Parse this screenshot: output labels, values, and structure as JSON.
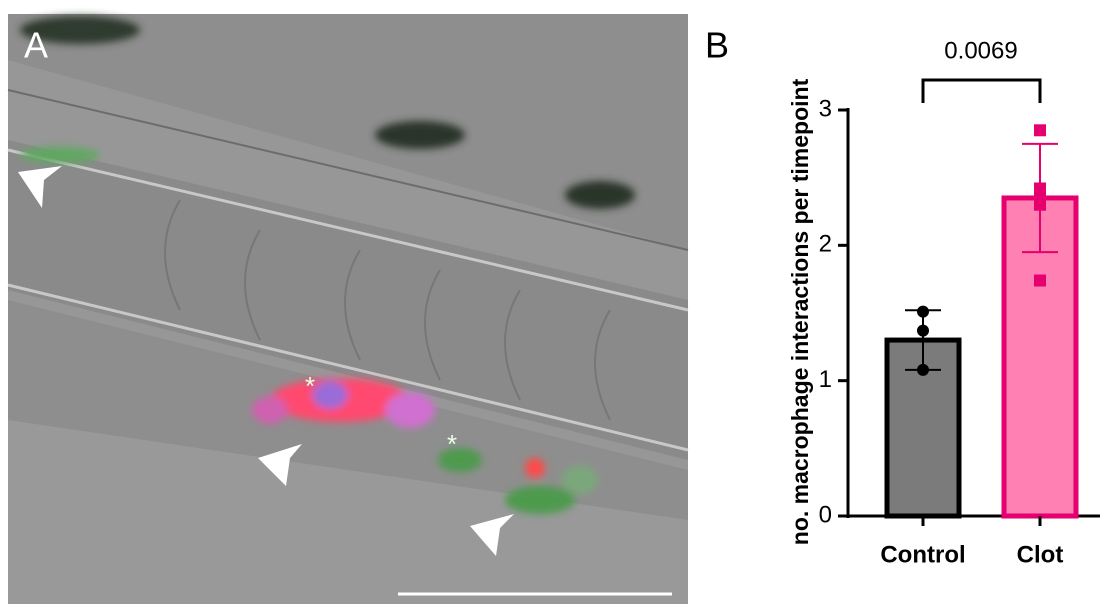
{
  "panel_a": {
    "label": "A",
    "annotations": [
      "*",
      "*"
    ]
  },
  "chart_data": {
    "type": "bar",
    "panel_label": "B",
    "ylabel": "no. macrophage interactions per timepoint",
    "categories": [
      "Control",
      "Clot"
    ],
    "values": [
      1.3,
      2.35
    ],
    "errors": [
      0.22,
      0.4
    ],
    "points": [
      [
        1.51,
        1.37,
        1.08
      ],
      [
        2.85,
        2.42,
        2.3,
        2.39,
        1.74
      ]
    ],
    "colors": [
      "#7b7b7b",
      "#ff80b3"
    ],
    "edge_colors": [
      "#000000",
      "#e6006f"
    ],
    "ylim": [
      0,
      3
    ],
    "yticks": [
      0,
      1,
      2,
      3
    ],
    "annotation": "0.0069"
  }
}
